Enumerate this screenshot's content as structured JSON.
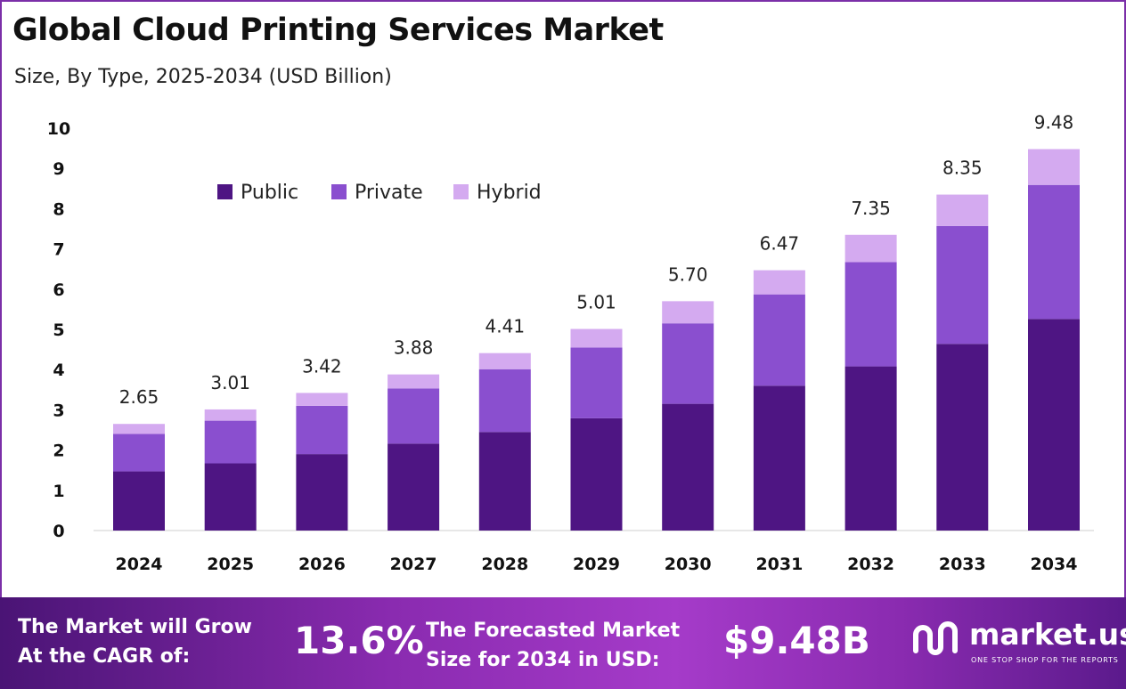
{
  "header": {
    "title": "Global Cloud Printing Services Market",
    "subtitle": "Size, By Type, 2025-2034 (USD Billion)"
  },
  "colors": {
    "public": "#4e1583",
    "private": "#8a4fcf",
    "hybrid": "#d4aaf0",
    "accent": "#7b2fa8"
  },
  "chart_data": {
    "type": "bar",
    "stacked": true,
    "categories": [
      "2024",
      "2025",
      "2026",
      "2027",
      "2028",
      "2029",
      "2030",
      "2031",
      "2032",
      "2033",
      "2034"
    ],
    "series": [
      {
        "name": "Public",
        "values": [
          1.47,
          1.67,
          1.9,
          2.16,
          2.45,
          2.79,
          3.15,
          3.6,
          4.08,
          4.64,
          5.26
        ]
      },
      {
        "name": "Private",
        "values": [
          0.93,
          1.06,
          1.2,
          1.37,
          1.56,
          1.76,
          2.0,
          2.27,
          2.59,
          2.93,
          3.33
        ]
      },
      {
        "name": "Hybrid",
        "values": [
          0.25,
          0.28,
          0.32,
          0.35,
          0.4,
          0.46,
          0.55,
          0.6,
          0.68,
          0.78,
          0.89
        ]
      }
    ],
    "totals": [
      "2.65",
      "3.01",
      "3.42",
      "3.88",
      "4.41",
      "5.01",
      "5.70",
      "6.47",
      "7.35",
      "8.35",
      "9.48"
    ],
    "yticks": [
      "0",
      "1",
      "2",
      "3",
      "4",
      "5",
      "6",
      "7",
      "8",
      "9",
      "10"
    ],
    "ylim": [
      0,
      10
    ],
    "grid": false,
    "legend_position": "top-left"
  },
  "footer": {
    "cagr_label_line1": "The Market will Grow",
    "cagr_label_line2": "At the CAGR of:",
    "cagr_value": "13.6%",
    "forecast_label_line1": "The Forecasted Market",
    "forecast_label_line2": "Size for 2034 in USD:",
    "forecast_value": "$9.48B",
    "brand_name": "market.us",
    "brand_tagline": "ONE STOP SHOP FOR THE REPORTS",
    "logo_icon": "market-us-logo-icon"
  }
}
